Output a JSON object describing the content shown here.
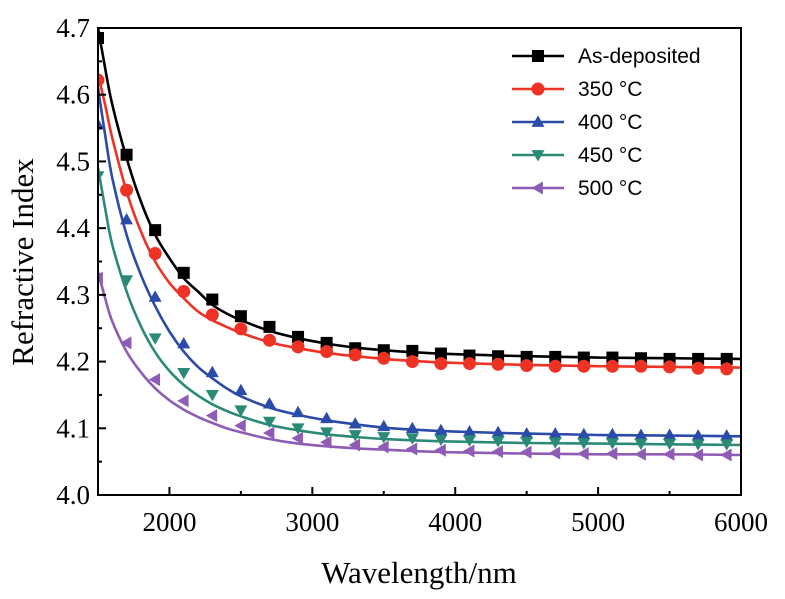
{
  "chart_data": {
    "type": "line",
    "title": "",
    "xlabel": "Wavelength/nm",
    "ylabel": "Refractive Index",
    "xlim": [
      1500,
      6000
    ],
    "ylim": [
      4.0,
      4.7
    ],
    "xticks": [
      2000,
      3000,
      4000,
      5000,
      6000
    ],
    "xtick_labels": [
      "2000",
      "3000",
      "4000",
      "5000",
      "6000"
    ],
    "yticks": [
      4.0,
      4.1,
      4.2,
      4.3,
      4.4,
      4.5,
      4.6,
      4.7
    ],
    "ytick_labels": [
      "4.0",
      "4.1",
      "4.2",
      "4.3",
      "4.4",
      "4.5",
      "4.6",
      "4.7"
    ],
    "grid": false,
    "legend_position": "top-right",
    "marker_x": [
      1500,
      1700,
      1900,
      2100,
      2300,
      2500,
      2700,
      2900,
      3100,
      3300,
      3500,
      3700,
      3900,
      4100,
      4300,
      4500,
      4700,
      4900,
      5100,
      5300,
      5500,
      5700,
      5900
    ],
    "series": [
      {
        "name": "As-deposited",
        "color": "#000000",
        "marker": "square",
        "curve": [
          [
            1500,
            4.7
          ],
          [
            1550,
            4.64
          ],
          [
            1600,
            4.585
          ],
          [
            1700,
            4.505
          ],
          [
            1800,
            4.44
          ],
          [
            1900,
            4.39
          ],
          [
            2000,
            4.355
          ],
          [
            2100,
            4.325
          ],
          [
            2200,
            4.305
          ],
          [
            2300,
            4.285
          ],
          [
            2400,
            4.272
          ],
          [
            2500,
            4.262
          ],
          [
            2700,
            4.246
          ],
          [
            2900,
            4.235
          ],
          [
            3100,
            4.227
          ],
          [
            3300,
            4.221
          ],
          [
            3500,
            4.217
          ],
          [
            3700,
            4.214
          ],
          [
            4000,
            4.211
          ],
          [
            4500,
            4.208
          ],
          [
            5000,
            4.206
          ],
          [
            5500,
            4.205
          ],
          [
            6000,
            4.204
          ]
        ],
        "points": [
          4.685,
          4.51,
          4.397,
          4.333,
          4.293,
          4.268,
          4.252,
          4.237,
          4.228,
          4.22,
          4.217,
          4.216,
          4.212,
          4.209,
          4.208,
          4.207,
          4.207,
          4.206,
          4.206,
          4.205,
          4.204,
          4.204,
          4.204
        ]
      },
      {
        "name": "350 °C",
        "color": "#ee3224",
        "marker": "circle",
        "curve": [
          [
            1500,
            4.63
          ],
          [
            1550,
            4.585
          ],
          [
            1600,
            4.535
          ],
          [
            1700,
            4.455
          ],
          [
            1800,
            4.395
          ],
          [
            1900,
            4.35
          ],
          [
            2000,
            4.318
          ],
          [
            2100,
            4.295
          ],
          [
            2200,
            4.275
          ],
          [
            2300,
            4.262
          ],
          [
            2400,
            4.252
          ],
          [
            2500,
            4.243
          ],
          [
            2700,
            4.229
          ],
          [
            2900,
            4.22
          ],
          [
            3100,
            4.213
          ],
          [
            3300,
            4.208
          ],
          [
            3500,
            4.204
          ],
          [
            3700,
            4.201
          ],
          [
            4000,
            4.198
          ],
          [
            4500,
            4.195
          ],
          [
            5000,
            4.193
          ],
          [
            5500,
            4.192
          ],
          [
            6000,
            4.191
          ]
        ],
        "points": [
          4.622,
          4.457,
          4.362,
          4.305,
          4.27,
          4.249,
          4.232,
          4.222,
          4.215,
          4.21,
          4.205,
          4.2,
          4.197,
          4.197,
          4.196,
          4.194,
          4.193,
          4.193,
          4.193,
          4.193,
          4.192,
          4.19,
          4.189
        ]
      },
      {
        "name": "400 °C",
        "color": "#2b4ba8",
        "marker": "triangle-up",
        "curve": [
          [
            1500,
            4.61
          ],
          [
            1550,
            4.54
          ],
          [
            1600,
            4.475
          ],
          [
            1700,
            4.39
          ],
          [
            1800,
            4.33
          ],
          [
            1900,
            4.283
          ],
          [
            2000,
            4.245
          ],
          [
            2100,
            4.215
          ],
          [
            2200,
            4.192
          ],
          [
            2300,
            4.175
          ],
          [
            2400,
            4.16
          ],
          [
            2500,
            4.148
          ],
          [
            2700,
            4.131
          ],
          [
            2900,
            4.12
          ],
          [
            3100,
            4.112
          ],
          [
            3300,
            4.106
          ],
          [
            3500,
            4.101
          ],
          [
            3700,
            4.098
          ],
          [
            4000,
            4.095
          ],
          [
            4500,
            4.092
          ],
          [
            5000,
            4.09
          ],
          [
            5500,
            4.089
          ],
          [
            6000,
            4.088
          ]
        ],
        "points": [
          4.555,
          4.413,
          4.297,
          4.227,
          4.184,
          4.157,
          4.137,
          4.124,
          4.115,
          4.107,
          4.103,
          4.1,
          4.097,
          4.095,
          4.094,
          4.092,
          4.092,
          4.091,
          4.091,
          4.09,
          4.09,
          4.089,
          4.089
        ]
      },
      {
        "name": "450 °C",
        "color": "#2a8a77",
        "marker": "triangle-down",
        "curve": [
          [
            1500,
            4.49
          ],
          [
            1550,
            4.43
          ],
          [
            1600,
            4.375
          ],
          [
            1700,
            4.305
          ],
          [
            1800,
            4.253
          ],
          [
            1900,
            4.214
          ],
          [
            2000,
            4.186
          ],
          [
            2100,
            4.165
          ],
          [
            2200,
            4.149
          ],
          [
            2300,
            4.136
          ],
          [
            2400,
            4.126
          ],
          [
            2500,
            4.118
          ],
          [
            2700,
            4.105
          ],
          [
            2900,
            4.097
          ],
          [
            3100,
            4.091
          ],
          [
            3300,
            4.087
          ],
          [
            3500,
            4.084
          ],
          [
            3700,
            4.082
          ],
          [
            4000,
            4.08
          ],
          [
            4500,
            4.078
          ],
          [
            5000,
            4.077
          ],
          [
            5500,
            4.076
          ],
          [
            6000,
            4.075
          ]
        ],
        "points": [
          4.478,
          4.322,
          4.235,
          4.183,
          4.15,
          4.127,
          4.11,
          4.1,
          4.094,
          4.09,
          4.087,
          4.085,
          4.083,
          4.082,
          4.081,
          4.08,
          4.079,
          4.078,
          4.078,
          4.077,
          4.077,
          4.076,
          4.076
        ]
      },
      {
        "name": "500 °C",
        "color": "#8e5cb5",
        "marker": "triangle-left",
        "curve": [
          [
            1500,
            4.335
          ],
          [
            1550,
            4.295
          ],
          [
            1600,
            4.26
          ],
          [
            1700,
            4.215
          ],
          [
            1800,
            4.184
          ],
          [
            1900,
            4.16
          ],
          [
            2000,
            4.142
          ],
          [
            2100,
            4.128
          ],
          [
            2200,
            4.117
          ],
          [
            2300,
            4.108
          ],
          [
            2400,
            4.1
          ],
          [
            2500,
            4.094
          ],
          [
            2700,
            4.084
          ],
          [
            2900,
            4.077
          ],
          [
            3100,
            4.073
          ],
          [
            3300,
            4.07
          ],
          [
            3500,
            4.068
          ],
          [
            3700,
            4.066
          ],
          [
            4000,
            4.064
          ],
          [
            4500,
            4.062
          ],
          [
            5000,
            4.061
          ],
          [
            5500,
            4.061
          ],
          [
            6000,
            4.06
          ]
        ],
        "points": [
          4.325,
          4.228,
          4.173,
          4.141,
          4.119,
          4.104,
          4.093,
          4.085,
          4.079,
          4.075,
          4.072,
          4.069,
          4.067,
          4.066,
          4.065,
          4.064,
          4.063,
          4.062,
          4.062,
          4.061,
          4.061,
          4.06,
          4.06
        ]
      }
    ]
  }
}
